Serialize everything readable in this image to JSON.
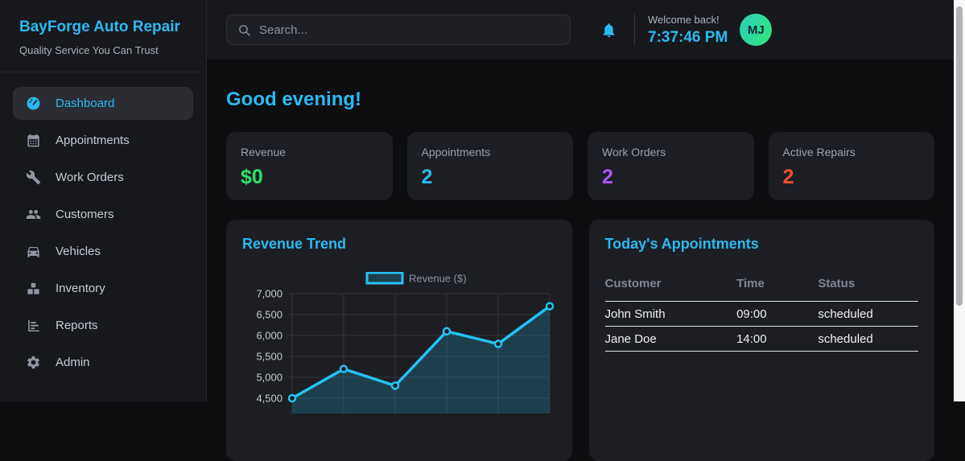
{
  "app": {
    "name": "BayForge Auto Repair",
    "tagline": "Quality Service You Can Trust"
  },
  "sidebar": {
    "items": [
      {
        "label": "Dashboard",
        "icon": "gauge-icon",
        "active": true
      },
      {
        "label": "Appointments",
        "icon": "calendar-icon",
        "active": false
      },
      {
        "label": "Work Orders",
        "icon": "wrench-icon",
        "active": false
      },
      {
        "label": "Customers",
        "icon": "users-icon",
        "active": false
      },
      {
        "label": "Vehicles",
        "icon": "car-icon",
        "active": false
      },
      {
        "label": "Inventory",
        "icon": "boxes-icon",
        "active": false
      },
      {
        "label": "Reports",
        "icon": "bar-chart-icon",
        "active": false
      },
      {
        "label": "Admin",
        "icon": "gear-icon",
        "active": false
      }
    ]
  },
  "topbar": {
    "search_placeholder": "Search...",
    "welcome_text": "Welcome back!",
    "time": "7:37:46 PM",
    "avatar_initials": "MJ"
  },
  "main": {
    "greeting": "Good evening!",
    "stats": [
      {
        "label": "Revenue",
        "value": "$0",
        "color": "#2ee36a"
      },
      {
        "label": "Appointments",
        "value": "2",
        "color": "#2bb9f0"
      },
      {
        "label": "Work Orders",
        "value": "2",
        "color": "#a855f7"
      },
      {
        "label": "Active Repairs",
        "value": "2",
        "color": "#f4502a"
      }
    ],
    "revenue_panel": {
      "title": "Revenue Trend"
    },
    "appointments_panel": {
      "title": "Today's Appointments",
      "columns": [
        "Customer",
        "Time",
        "Status"
      ],
      "rows": [
        {
          "customer": "John Smith",
          "time": "09:00",
          "status": "scheduled"
        },
        {
          "customer": "Jane Doe",
          "time": "14:00",
          "status": "scheduled"
        }
      ]
    }
  },
  "chart_data": {
    "type": "line",
    "title": "Revenue Trend",
    "series": [
      {
        "name": "Revenue ($)",
        "values": [
          4500,
          5200,
          4800,
          6100,
          5800,
          6700
        ]
      }
    ],
    "y_ticks": [
      7000,
      6500,
      6000,
      5500,
      5000,
      4500
    ],
    "ylim": [
      4500,
      7000
    ],
    "x_tick_labels_visible": false,
    "grid": true,
    "legend_position": "top",
    "line_color": "#25c2f2",
    "fill_color": "rgba(37,194,242,0.20)",
    "marker": "hollow-circle"
  },
  "colors": {
    "accent": "#2bb9f0",
    "background": "#0d0e10",
    "surface": "#17181c",
    "card": "#1c1e23",
    "green": "#2ee36a",
    "purple": "#a855f7",
    "orange": "#f4502a"
  }
}
